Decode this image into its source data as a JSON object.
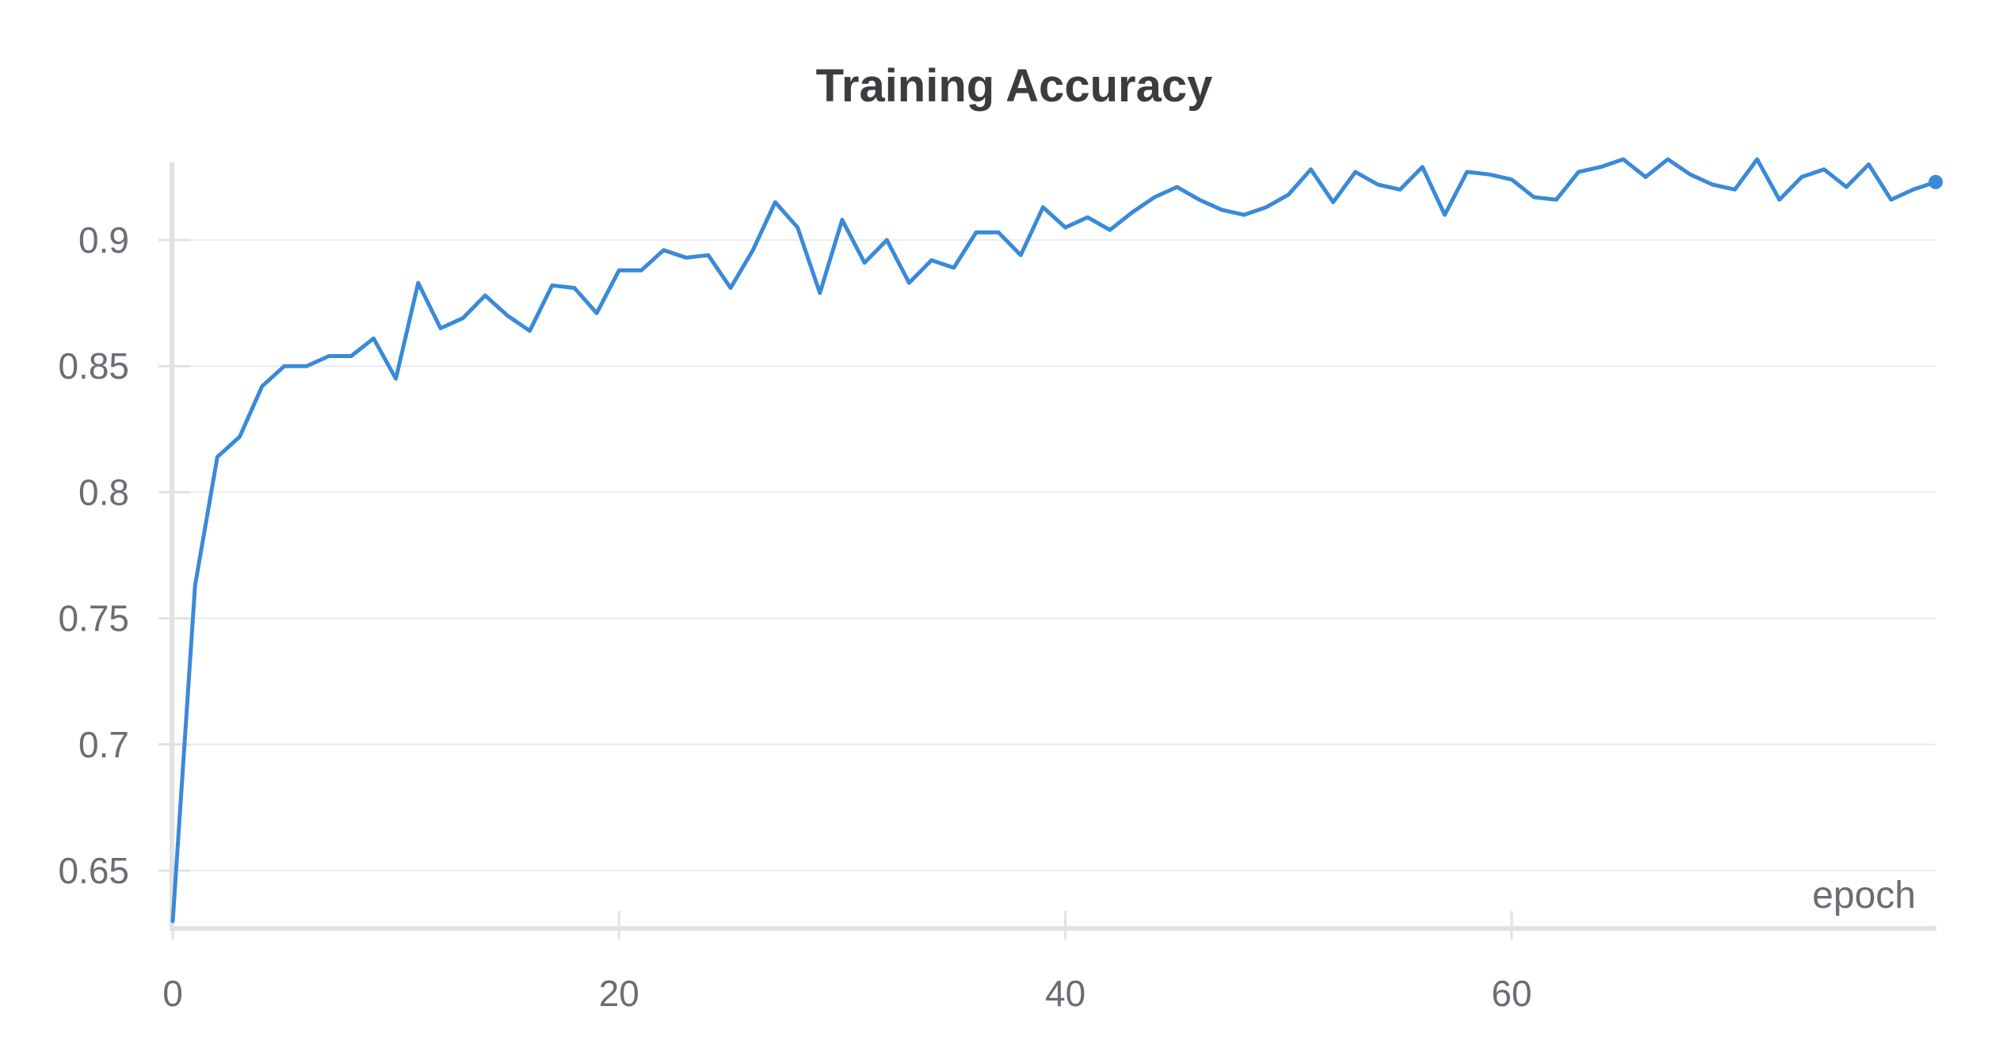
{
  "chart_data": {
    "type": "line",
    "title": "Training Accuracy",
    "xlabel": "epoch",
    "ylabel": "",
    "xlim": [
      0,
      79
    ],
    "ylim": [
      0.63,
      0.93
    ],
    "x_ticks": [
      0,
      20,
      40,
      60
    ],
    "x_tick_labels": [
      "0",
      "20",
      "40",
      "60"
    ],
    "y_ticks": [
      0.65,
      0.7,
      0.75,
      0.8,
      0.85,
      0.9
    ],
    "y_tick_labels": [
      "0.65",
      "0.7",
      "0.75",
      "0.8",
      "0.85",
      "0.9"
    ],
    "grid": true,
    "line_color": "#3a8ad8",
    "series": [
      {
        "x": [
          0,
          1,
          2,
          3,
          4,
          5,
          6,
          7,
          8,
          9,
          10,
          11,
          12,
          13,
          14,
          15,
          16,
          17,
          18,
          19,
          20,
          21,
          22,
          23,
          24,
          25,
          26,
          27,
          28,
          29,
          30,
          31,
          32,
          33,
          34,
          35,
          36,
          37,
          38,
          39,
          40,
          41,
          42,
          43,
          44,
          45,
          46,
          47,
          48,
          49,
          50,
          51,
          52,
          53,
          54,
          55,
          56,
          57,
          58,
          59,
          60,
          61,
          62,
          63,
          64,
          65,
          66,
          67,
          68,
          69,
          70,
          71,
          72,
          73,
          74,
          75,
          76,
          77,
          78,
          79
        ],
        "values": [
          0.63,
          0.763,
          0.814,
          0.822,
          0.842,
          0.85,
          0.85,
          0.854,
          0.854,
          0.861,
          0.845,
          0.883,
          0.865,
          0.869,
          0.878,
          0.87,
          0.864,
          0.882,
          0.881,
          0.871,
          0.888,
          0.888,
          0.896,
          0.893,
          0.894,
          0.881,
          0.896,
          0.915,
          0.905,
          0.879,
          0.908,
          0.891,
          0.9,
          0.883,
          0.892,
          0.889,
          0.903,
          0.903,
          0.894,
          0.913,
          0.905,
          0.909,
          0.904,
          0.911,
          0.917,
          0.921,
          0.916,
          0.912,
          0.91,
          0.913,
          0.918,
          0.928,
          0.915,
          0.927,
          0.922,
          0.92,
          0.929,
          0.91,
          0.927,
          0.926,
          0.924,
          0.917,
          0.916,
          0.927,
          0.929,
          0.932,
          0.925,
          0.932,
          0.926,
          0.922,
          0.92,
          0.932,
          0.916,
          0.925,
          0.928,
          0.921,
          0.93,
          0.916,
          0.92,
          0.923
        ]
      }
    ]
  }
}
